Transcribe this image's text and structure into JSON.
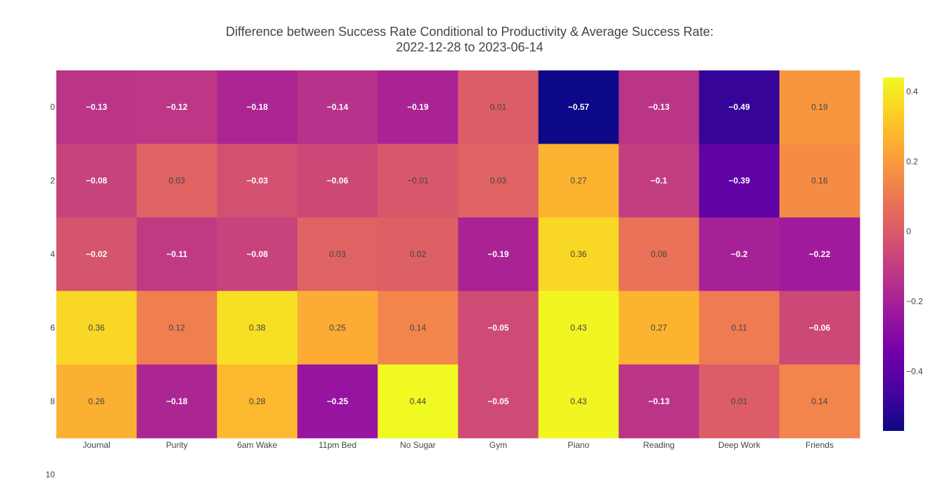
{
  "chart_data": {
    "type": "heatmap",
    "title": "Difference between Success Rate Conditional to Productivity & Average Success Rate:",
    "subtitle": "2022-12-28 to 2023-06-14",
    "x_categories": [
      "Journal",
      "Purity",
      "6am Wake",
      "11pm Bed",
      "No Sugar",
      "Gym",
      "Piano",
      "Reading",
      "Deep Work",
      "Friends"
    ],
    "y_values": [
      0,
      2,
      4,
      6,
      8
    ],
    "y_tick_labels": [
      "0",
      "2",
      "4",
      "6",
      "8",
      "10"
    ],
    "y_range": [
      10,
      0
    ],
    "z": [
      [
        -0.13,
        -0.12,
        -0.18,
        -0.14,
        -0.19,
        0.01,
        -0.57,
        -0.13,
        -0.49,
        0.19
      ],
      [
        -0.08,
        0.03,
        -0.03,
        -0.06,
        -0.01,
        0.03,
        0.27,
        -0.1,
        -0.39,
        0.16
      ],
      [
        -0.02,
        -0.11,
        -0.08,
        0.03,
        0.02,
        -0.19,
        0.36,
        0.08,
        -0.2,
        -0.22
      ],
      [
        0.36,
        0.12,
        0.38,
        0.25,
        0.14,
        -0.05,
        0.43,
        0.27,
        0.11,
        -0.06
      ],
      [
        0.26,
        -0.18,
        0.28,
        -0.25,
        0.44,
        -0.05,
        0.43,
        -0.13,
        0.01,
        0.14
      ]
    ],
    "z_labels": [
      [
        "−0.13",
        "−0.12",
        "−0.18",
        "−0.14",
        "−0.19",
        "0.01",
        "−0.57",
        "−0.13",
        "−0.49",
        "0.19"
      ],
      [
        "−0.08",
        "0.03",
        "−0.03",
        "−0.06",
        "−0.01",
        "0.03",
        "0.27",
        "−0.1",
        "−0.39",
        "0.16"
      ],
      [
        "−0.02",
        "−0.11",
        "−0.08",
        "0.03",
        "0.02",
        "−0.19",
        "0.36",
        "0.08",
        "−0.2",
        "−0.22"
      ],
      [
        "0.36",
        "0.12",
        "0.38",
        "0.25",
        "0.14",
        "−0.05",
        "0.43",
        "0.27",
        "0.11",
        "−0.06"
      ],
      [
        "0.26",
        "−0.18",
        "0.28",
        "−0.25",
        "0.44",
        "−0.05",
        "0.43",
        "−0.13",
        "0.01",
        "0.14"
      ]
    ],
    "colorscale": "plasma",
    "colorbar": {
      "zmin": -0.57,
      "zmax": 0.44,
      "tick_values": [
        0.4,
        0.2,
        0,
        -0.2,
        -0.4
      ],
      "tick_labels": [
        "0.4",
        "0.2",
        "0",
        "−0.2",
        "−0.4"
      ]
    }
  }
}
